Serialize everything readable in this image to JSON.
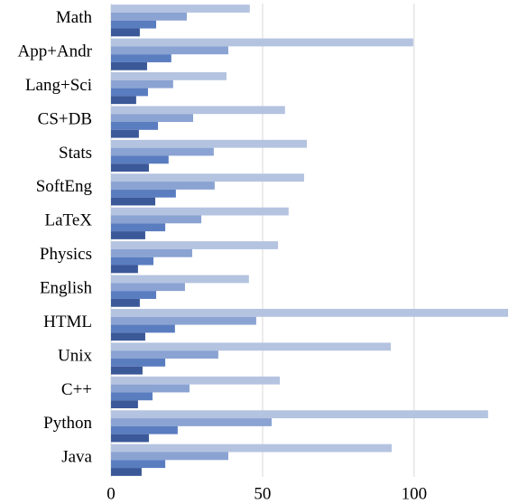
{
  "chart_data": {
    "type": "hbar",
    "categories": [
      "Math",
      "App+Andr",
      "Lang+Sci",
      "CS+DB",
      "Stats",
      "SoftEng",
      "LaTeX",
      "Physics",
      "English",
      "HTML",
      "Unix",
      "C++",
      "Python",
      "Java"
    ],
    "series": [
      {
        "color": "#b4c3e0",
        "values": [
          45.8,
          99.7,
          38.1,
          57.4,
          64.6,
          63.7,
          58.6,
          55.1,
          45.5,
          131,
          92.3,
          55.7,
          124.4,
          92.6
        ]
      },
      {
        "color": "#8aa3d2",
        "values": [
          25,
          38.7,
          20.5,
          27.1,
          33.9,
          34.2,
          29.8,
          26.8,
          24.4,
          47.9,
          35.4,
          25.9,
          53,
          38.7
        ]
      },
      {
        "color": "#5a7dc0",
        "values": [
          14.9,
          19.9,
          12.2,
          15.5,
          19,
          21.4,
          17.9,
          14,
          14.9,
          21.1,
          17.9,
          13.7,
          22,
          17.9
        ]
      },
      {
        "color": "#3b5998",
        "values": [
          9.5,
          11.9,
          8.3,
          9.2,
          12.5,
          14.6,
          11.3,
          8.9,
          9.5,
          11.3,
          10.4,
          8.9,
          12.5,
          10.1
        ]
      }
    ],
    "xlim": [
      0,
      131.3
    ],
    "xticks": [
      0,
      50,
      100
    ],
    "grid": true
  }
}
